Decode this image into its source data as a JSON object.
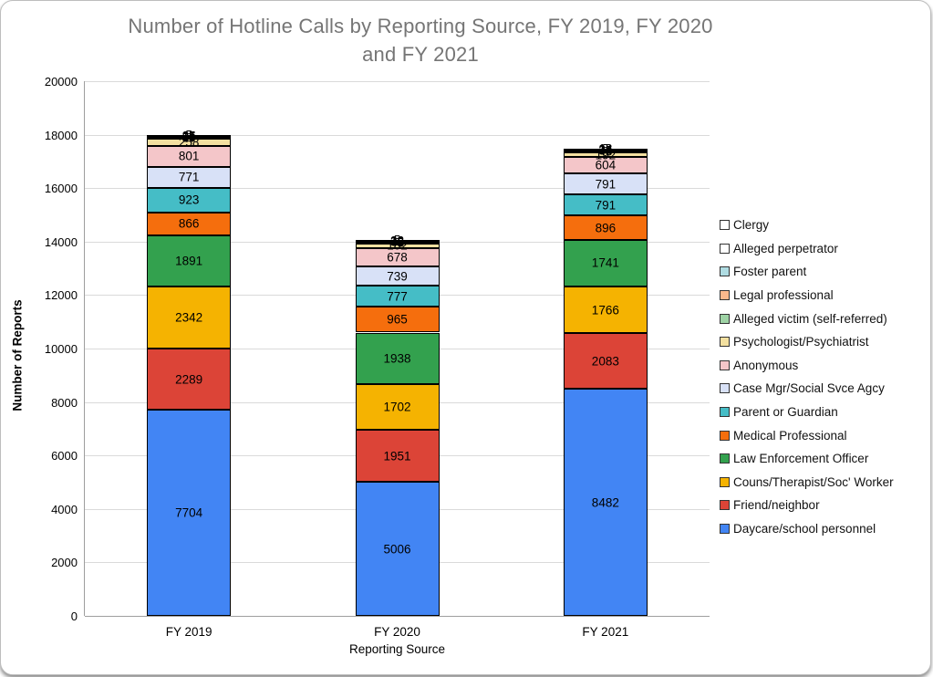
{
  "title": {
    "line1": "Number of Hotline Calls by Reporting Source, FY 2019, FY 2020",
    "line2": "and FY 2021"
  },
  "chart_data": {
    "type": "bar",
    "stacked": true,
    "title": "Number of Hotline Calls by Reporting Source, FY 2019, FY 2020 and FY 2021",
    "xlabel": "Reporting Source",
    "ylabel": "Number of Reports",
    "ylim": [
      0,
      20000
    ],
    "ytick_interval": 2000,
    "grid": true,
    "legend_position": "right",
    "bar_labels": true,
    "categories": [
      "FY 2019",
      "FY 2020",
      "FY 2021"
    ],
    "series": [
      {
        "name": "Daycare/school personnel",
        "color": "#4285F4",
        "values": [
          7704,
          5006,
          8482
        ]
      },
      {
        "name": "Friend/neighbor",
        "color": "#DC4437",
        "values": [
          2289,
          1951,
          2083
        ]
      },
      {
        "name": "Couns/Therapist/Soc' Worker",
        "color": "#F5B301",
        "values": [
          2342,
          1702,
          1766
        ]
      },
      {
        "name": "Law Enforcement Officer",
        "color": "#33A14E",
        "values": [
          1891,
          1938,
          1741
        ]
      },
      {
        "name": "Medical Professional",
        "color": "#F56E0D",
        "values": [
          866,
          965,
          896
        ]
      },
      {
        "name": "Parent or Guardian",
        "color": "#45BDC6",
        "values": [
          923,
          777,
          791
        ]
      },
      {
        "name": "Case Mgr/Social Svce Agcy",
        "color": "#D8E1F7",
        "values": [
          771,
          739,
          791
        ]
      },
      {
        "name": "Anonymous",
        "color": "#F4C6C9",
        "values": [
          801,
          678,
          604
        ]
      },
      {
        "name": "Psychologist/Psychiatrist",
        "color": "#F3E0A0",
        "values": [
          258,
          182,
          192
        ]
      },
      {
        "name": "Alleged victim (self-referred)",
        "color": "#9ED3A5",
        "values": [
          50,
          45,
          48
        ]
      },
      {
        "name": "Legal professional",
        "color": "#FAB88C",
        "values": [
          35,
          32,
          35
        ]
      },
      {
        "name": "Foster parent",
        "color": "#AFDCE2",
        "values": [
          25,
          22,
          24
        ]
      },
      {
        "name": "Alleged perpetrator",
        "color": "#FFFFFF",
        "values": [
          15,
          12,
          13
        ]
      },
      {
        "name": "Clergy",
        "color": "#FFFFFF",
        "values": [
          5,
          5,
          5
        ]
      }
    ]
  },
  "colors": {
    "grid": "#DADADA",
    "axis_line": "#9E9E9E",
    "bar_border": "#000000",
    "title_text": "#757575",
    "label_text": "#000000"
  }
}
